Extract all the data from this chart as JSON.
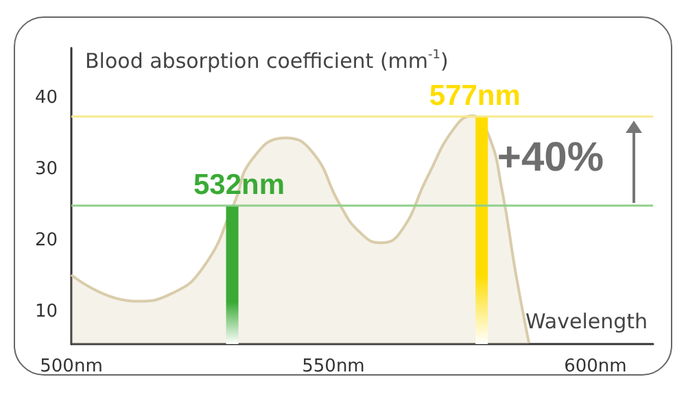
{
  "chart_data": {
    "type": "area",
    "ylabel": "Blood absorption coefficient (mm$^{-1}$)",
    "xlabel": "Wavelength",
    "xlim": [
      500,
      611
    ],
    "xticks": [
      {
        "value": 500,
        "label": "500nm"
      },
      {
        "value": 550,
        "label": "550nm"
      },
      {
        "value": 600,
        "label": "600nm"
      }
    ],
    "ylim": [
      5.5,
      47
    ],
    "yticks": [
      10,
      20,
      30,
      40
    ],
    "series": [
      {
        "color": "#d9ccaa",
        "x": [
          500,
          512.4,
          518.9,
          525.3,
          531,
          534.4,
          540.8,
          546,
          551.2,
          555,
          559,
          562.8,
          568,
          573,
          576.5,
          579.6,
          582.2,
          584.8,
          587.3
        ],
        "values": [
          15.2,
          11.5,
          12.5,
          16.4,
          25.1,
          31.3,
          34.4,
          32.4,
          25.1,
          21.2,
          19.7,
          21.2,
          29,
          35.7,
          37.5,
          34.8,
          27,
          15.4,
          5.7
        ]
      },
      {
        "type": "bar",
        "color": "#3aaa35",
        "x": [
          532
        ],
        "values": [
          25
        ]
      },
      {
        "type": "bar",
        "color": "#ffdd00",
        "x": [
          577
        ],
        "values": [
          37.5
        ]
      }
    ],
    "ref_lines": [
      {
        "axis": "y",
        "value": 25,
        "color": "#8fcf8a"
      },
      {
        "axis": "y",
        "value": 37.5,
        "color": "#f7e98a"
      }
    ],
    "annotations": [
      {
        "text": "532nm",
        "x": 532,
        "y": 25
      },
      {
        "text": "577nm",
        "x": 577,
        "y": 37.5
      },
      "+40%"
    ]
  }
}
